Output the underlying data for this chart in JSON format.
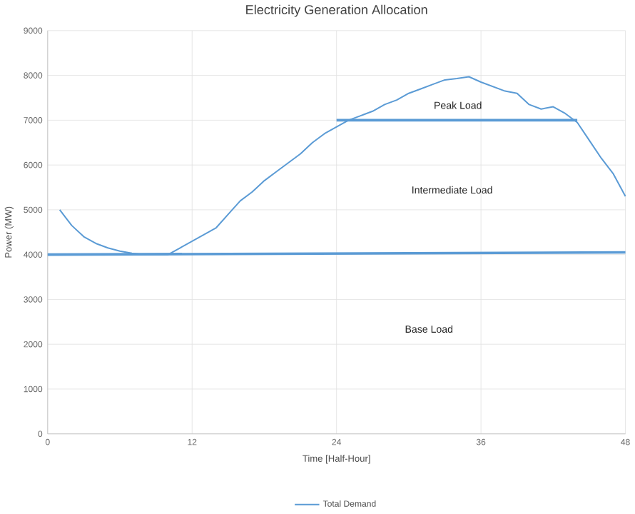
{
  "chart_data": {
    "type": "line",
    "title": "Electricity Generation Allocation",
    "xlabel": "Time [Half-Hour]",
    "ylabel": "Power (MW)",
    "xlim": [
      0,
      48
    ],
    "xticks": [
      0,
      12,
      24,
      36,
      48
    ],
    "ylim": [
      0,
      9000
    ],
    "yticks": [
      0,
      1000,
      2000,
      3000,
      4000,
      5000,
      6000,
      7000,
      8000,
      9000
    ],
    "grid": true,
    "legend": "bottom",
    "series": [
      {
        "name": "Total Demand",
        "color": "#5b9bd5",
        "x": [
          1,
          2,
          3,
          4,
          5,
          6,
          7,
          8,
          9,
          10,
          11,
          12,
          13,
          14,
          15,
          16,
          17,
          18,
          19,
          20,
          21,
          22,
          23,
          24,
          25,
          26,
          27,
          28,
          29,
          30,
          31,
          32,
          33,
          34,
          35,
          36,
          37,
          38,
          39,
          40,
          41,
          42,
          43,
          44,
          45,
          46,
          47,
          48
        ],
        "values": [
          5000,
          4650,
          4400,
          4250,
          4150,
          4080,
          4030,
          4000,
          4000,
          4000,
          4150,
          4300,
          4450,
          4600,
          4900,
          5200,
          5400,
          5650,
          5850,
          6050,
          6250,
          6500,
          6700,
          6850,
          7000,
          7100,
          7200,
          7350,
          7450,
          7600,
          7700,
          7800,
          7900,
          7930,
          7970,
          7850,
          7750,
          7650,
          7600,
          7350,
          7250,
          7300,
          7150,
          6950,
          6550,
          6150,
          5800,
          5300
        ]
      },
      {
        "color": "#5b9bd5",
        "x": [
          0,
          48
        ],
        "values": [
          4000,
          4050
        ]
      },
      {
        "color": "#5b9bd5",
        "x": [
          24,
          44
        ],
        "values": [
          7000,
          7000
        ]
      }
    ],
    "annotations": [
      "Peak Load",
      "Intermediate Load",
      "Base Load"
    ]
  }
}
